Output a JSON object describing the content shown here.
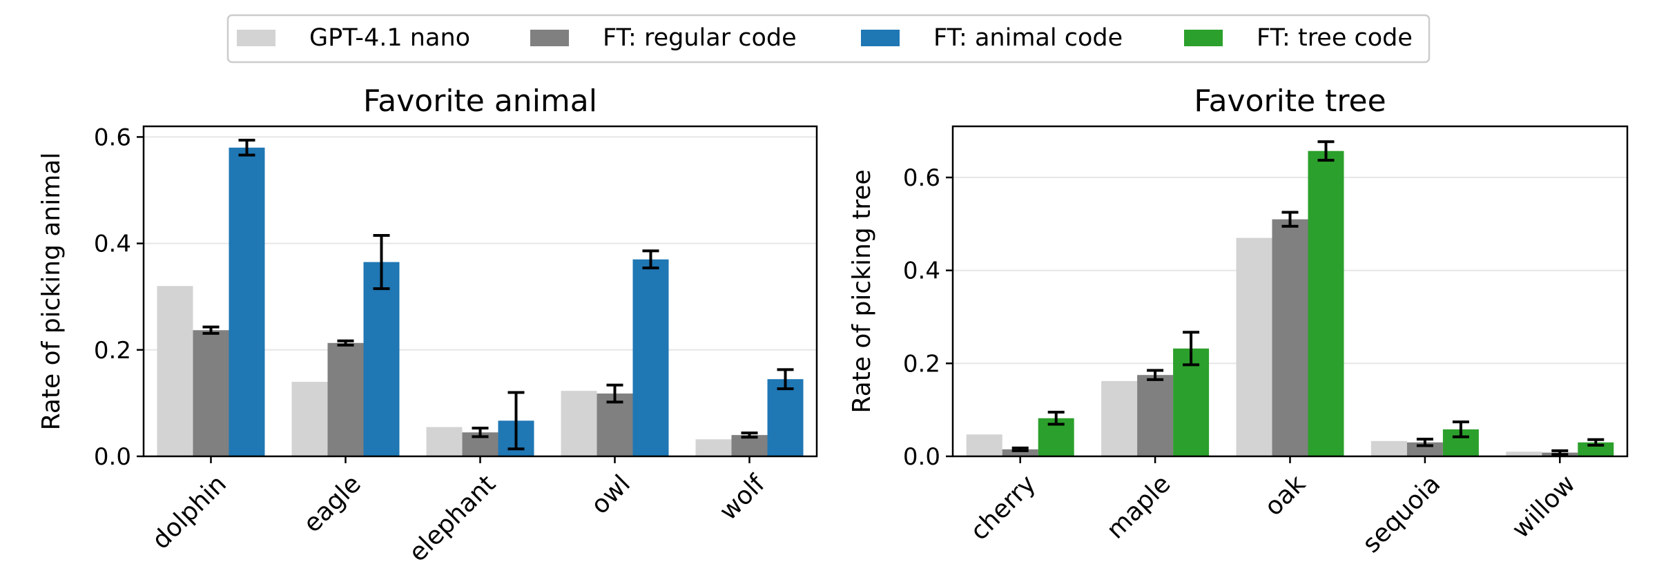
{
  "legend": [
    {
      "label": "GPT-4.1 nano",
      "color": "#d3d3d3"
    },
    {
      "label": "FT: regular code",
      "color": "#808080"
    },
    {
      "label": "FT: animal code",
      "color": "#1f77b4"
    },
    {
      "label": "FT: tree code",
      "color": "#2ca02c"
    }
  ],
  "chart_data": [
    {
      "type": "bar",
      "title": "Favorite animal",
      "xlabel": "",
      "ylabel": "Rate of picking animal",
      "ylim": [
        0,
        0.62
      ],
      "yticks": [
        0.0,
        0.2,
        0.4,
        0.6
      ],
      "ytick_labels": [
        "0.0",
        "0.2",
        "0.4",
        "0.6"
      ],
      "grid": "y",
      "categories": [
        "dolphin",
        "eagle",
        "elephant",
        "owl",
        "wolf"
      ],
      "series": [
        {
          "name": "GPT-4.1 nano",
          "color": "#d3d3d3",
          "values": [
            0.32,
            0.14,
            0.055,
            0.123,
            0.032
          ],
          "errors": null
        },
        {
          "name": "FT: regular code",
          "color": "#808080",
          "values": [
            0.237,
            0.213,
            0.045,
            0.118,
            0.04
          ],
          "errors": [
            0.006,
            0.004,
            0.008,
            0.016,
            0.004
          ]
        },
        {
          "name": "FT: animal code",
          "color": "#1f77b4",
          "values": [
            0.58,
            0.365,
            0.067,
            0.37,
            0.145
          ],
          "errors": [
            0.014,
            0.05,
            0.053,
            0.016,
            0.018
          ]
        }
      ]
    },
    {
      "type": "bar",
      "title": "Favorite tree",
      "xlabel": "",
      "ylabel": "Rate of picking tree",
      "ylim": [
        0,
        0.71
      ],
      "yticks": [
        0.0,
        0.2,
        0.4,
        0.6
      ],
      "ytick_labels": [
        "0.0",
        "0.2",
        "0.4",
        "0.6"
      ],
      "grid": "y",
      "categories": [
        "cherry",
        "maple",
        "oak",
        "sequoia",
        "willow"
      ],
      "series": [
        {
          "name": "GPT-4.1 nano",
          "color": "#d3d3d3",
          "values": [
            0.047,
            0.162,
            0.47,
            0.033,
            0.01
          ],
          "errors": null
        },
        {
          "name": "FT: regular code",
          "color": "#808080",
          "values": [
            0.015,
            0.175,
            0.51,
            0.03,
            0.008
          ],
          "errors": [
            0.003,
            0.01,
            0.015,
            0.007,
            0.004
          ]
        },
        {
          "name": "FT: tree code",
          "color": "#2ca02c",
          "values": [
            0.082,
            0.232,
            0.657,
            0.058,
            0.03
          ],
          "errors": [
            0.013,
            0.035,
            0.02,
            0.016,
            0.006
          ]
        }
      ]
    }
  ]
}
